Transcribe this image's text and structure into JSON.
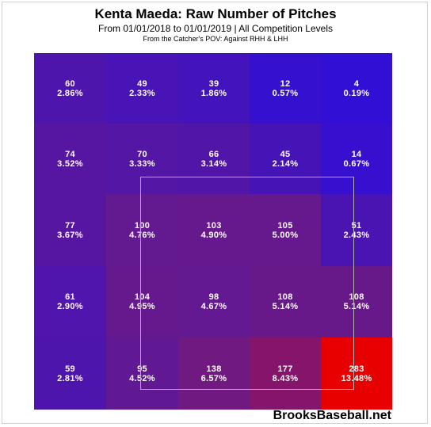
{
  "header": {
    "title": "Kenta Maeda: Raw Number of Pitches",
    "subtitle": "From 01/01/2018 to 01/01/2019 | All Competition Levels",
    "note": "From the Catcher's POV:  Against RHH & LHH"
  },
  "footer": {
    "brand": "BrooksBaseball.net"
  },
  "colors": {
    "low": "#2f0fd8",
    "mid": "#6a1a86",
    "high": "#e80000"
  },
  "chart_data": {
    "type": "heatmap",
    "rows": 5,
    "cols": 5,
    "cells": [
      [
        {
          "count": "60",
          "pct": "2.86%"
        },
        {
          "count": "49",
          "pct": "2.33%"
        },
        {
          "count": "39",
          "pct": "1.86%"
        },
        {
          "count": "12",
          "pct": "0.57%"
        },
        {
          "count": "4",
          "pct": "0.19%"
        }
      ],
      [
        {
          "count": "74",
          "pct": "3.52%"
        },
        {
          "count": "70",
          "pct": "3.33%"
        },
        {
          "count": "66",
          "pct": "3.14%"
        },
        {
          "count": "45",
          "pct": "2.14%"
        },
        {
          "count": "14",
          "pct": "0.67%"
        }
      ],
      [
        {
          "count": "77",
          "pct": "3.67%"
        },
        {
          "count": "100",
          "pct": "4.76%"
        },
        {
          "count": "103",
          "pct": "4.90%"
        },
        {
          "count": "105",
          "pct": "5.00%"
        },
        {
          "count": "51",
          "pct": "2.43%"
        }
      ],
      [
        {
          "count": "61",
          "pct": "2.90%"
        },
        {
          "count": "104",
          "pct": "4.95%"
        },
        {
          "count": "98",
          "pct": "4.67%"
        },
        {
          "count": "108",
          "pct": "5.14%"
        },
        {
          "count": "108",
          "pct": "5.14%"
        }
      ],
      [
        {
          "count": "59",
          "pct": "2.81%"
        },
        {
          "count": "95",
          "pct": "4.52%"
        },
        {
          "count": "138",
          "pct": "6.57%"
        },
        {
          "count": "177",
          "pct": "8.43%"
        },
        {
          "count": "283",
          "pct": "13.48%"
        }
      ]
    ]
  }
}
